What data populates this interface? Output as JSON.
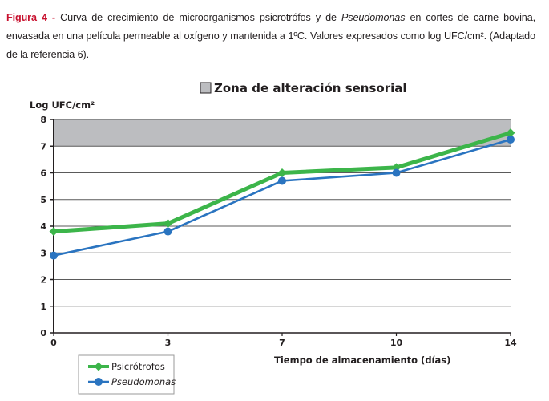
{
  "caption": {
    "figure_label": "Figura 4 -",
    "text_before_italic": " Curva de crecimiento de microorganismos psicrotrófos y de ",
    "italic": "Pseudomonas",
    "text_after_italic": " en cortes de carne bovina, envasada en una película permeable al oxígeno y mantenida a 1ºC. Valores expresados como log UFC/cm². (Adaptado de la referencia 6).",
    "figure_label_color": "#c8102e"
  },
  "chart_data": {
    "type": "line",
    "title": "",
    "ylabel": "Log UFC/cm²",
    "xlabel": "Tiempo de almacenamiento (días)",
    "categories": [
      "0",
      "3",
      "7",
      "10",
      "14"
    ],
    "ylim": [
      0,
      8
    ],
    "yticks": [
      "0",
      "1",
      "2",
      "3",
      "4",
      "5",
      "6",
      "7",
      "8"
    ],
    "grid": true,
    "shaded_zone": {
      "label": "Zona de alteración sensorial",
      "from": 7,
      "to": 8,
      "color": "#bcbdc0"
    },
    "series": [
      {
        "name": "Psicrótrofos",
        "values": [
          3.8,
          4.1,
          6.0,
          6.2,
          7.5
        ],
        "color": "#3cb54a",
        "marker": "diamond",
        "italic": false
      },
      {
        "name": "Pseudomonas",
        "values": [
          2.9,
          3.8,
          5.7,
          6.0,
          7.25
        ],
        "color": "#2a74c0",
        "marker": "circle",
        "italic": true
      }
    ],
    "legend_position": "bottom-left"
  }
}
